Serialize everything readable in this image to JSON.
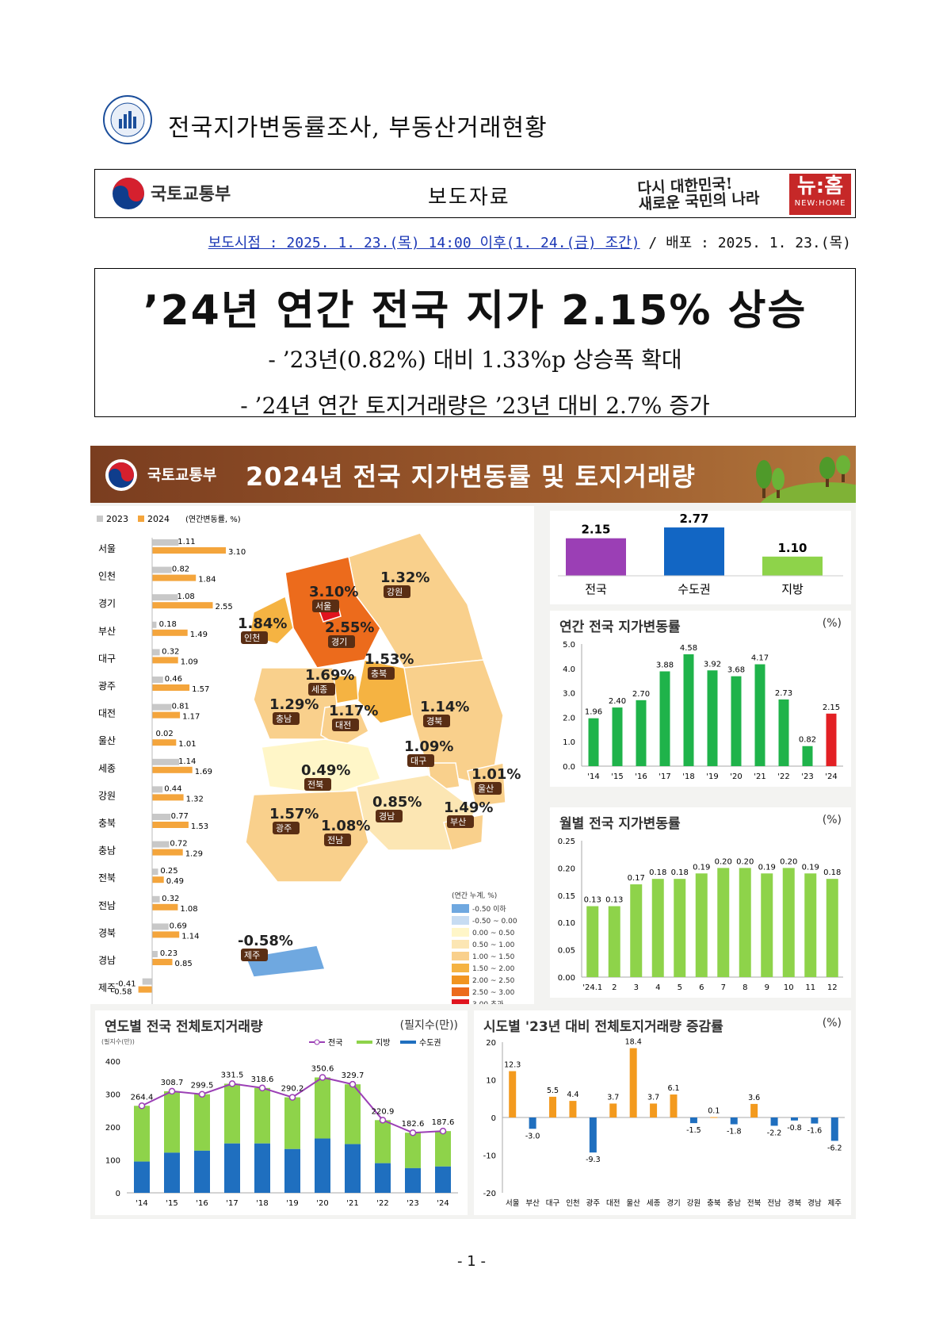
{
  "header": {
    "doc_title": "전국지가변동률조사, 부동산거래현황",
    "ministry": "국토교통부",
    "press_label": "보도자료",
    "slogan": [
      "다시 대한민국!",
      "새로운 국민의 나라"
    ],
    "newhome_big": "뉴:홈",
    "newhome_small": "NEW:HOME",
    "release_prefix": "보도시점 : 2025. 1. 23.(목) 14:00 이후(1. 24.(금) 조간)",
    "release_suffix": " / 배포 : 2025. 1. 23.(목)"
  },
  "headline": {
    "title": "’24년 연간 전국 지가 2.15% 상승",
    "sub1": "- ’23년(0.82%) 대비 1.33%p 상승폭 확대",
    "sub2": "- ’24년 연간 토지거래량은 ’23년 대비 2.7% 증가"
  },
  "infographic": {
    "org": "국토교통부",
    "title": "2024년 전국 지가변동률 및 토지거래량"
  },
  "colors": {
    "y2023": "#c8c8c8",
    "y2024": "#f4a53c",
    "green": "#1fb34a",
    "red": "#e32024",
    "purple": "#9b3fb5",
    "blue": "#1266c4",
    "lightgreen": "#8ed34a",
    "orange": "#f39a1e",
    "steelblue": "#1f6fbf"
  },
  "chart_data": [
    {
      "type": "bar",
      "title": "",
      "legend": [
        "2023",
        "2024"
      ],
      "legend_note": "(연간변동률, %)",
      "categories": [
        "서울",
        "인천",
        "경기",
        "부산",
        "대구",
        "광주",
        "대전",
        "울산",
        "세종",
        "강원",
        "충북",
        "충남",
        "전북",
        "전남",
        "경북",
        "경남",
        "제주"
      ],
      "series": [
        {
          "name": "2023",
          "values": [
            1.11,
            0.82,
            1.08,
            0.18,
            0.32,
            0.46,
            0.81,
            0.02,
            1.14,
            0.44,
            0.77,
            0.72,
            0.25,
            0.32,
            0.69,
            0.23,
            -0.41
          ]
        },
        {
          "name": "2024",
          "values": [
            3.1,
            1.84,
            2.55,
            1.49,
            1.09,
            1.57,
            1.17,
            1.01,
            1.69,
            1.32,
            1.53,
            1.29,
            0.49,
            1.08,
            1.14,
            0.85,
            -0.58
          ]
        }
      ]
    },
    {
      "type": "map",
      "regions": [
        {
          "name": "서울",
          "value": "3.10"
        },
        {
          "name": "인천",
          "value": "1.84"
        },
        {
          "name": "경기",
          "value": "2.55"
        },
        {
          "name": "강원",
          "value": "1.32"
        },
        {
          "name": "충북",
          "value": "1.53"
        },
        {
          "name": "세종",
          "value": "1.69"
        },
        {
          "name": "충남",
          "value": "1.29"
        },
        {
          "name": "대전",
          "value": "1.17"
        },
        {
          "name": "경북",
          "value": "1.14"
        },
        {
          "name": "대구",
          "value": "1.09"
        },
        {
          "name": "전북",
          "value": "0.49"
        },
        {
          "name": "울산",
          "value": "1.01"
        },
        {
          "name": "경남",
          "value": "0.85"
        },
        {
          "name": "부산",
          "value": "1.49"
        },
        {
          "name": "광주",
          "value": "1.57"
        },
        {
          "name": "전남",
          "value": "1.08"
        },
        {
          "name": "제주",
          "value": "-0.58"
        }
      ],
      "legend_title": "(연간 누계, %)",
      "legend": [
        {
          "label": "-0.50 이하",
          "color": "#6fa8e0"
        },
        {
          "label": "-0.50 ~ 0.00",
          "color": "#c7dcf2"
        },
        {
          "label": "0.00 ~ 0.50",
          "color": "#fff6c8"
        },
        {
          "label": "0.50 ~ 1.00",
          "color": "#fce6b3"
        },
        {
          "label": "1.00 ~ 1.50",
          "color": "#f9d08c"
        },
        {
          "label": "1.50 ~ 2.00",
          "color": "#f5b342"
        },
        {
          "label": "2.00 ~ 2.50",
          "color": "#f19420"
        },
        {
          "label": "2.50 ~ 3.00",
          "color": "#ec6b1c"
        },
        {
          "label": "3.00 초과",
          "color": "#e0141e"
        }
      ]
    },
    {
      "type": "bar",
      "title": "",
      "categories": [
        "전국",
        "수도권",
        "지방"
      ],
      "values": [
        2.15,
        2.77,
        1.1
      ],
      "labels": [
        "2.15",
        "2.77",
        "1.10"
      ]
    },
    {
      "type": "bar",
      "title": "연간 전국 지가변동률",
      "unit": "(%)",
      "categories": [
        "'14",
        "'15",
        "'16",
        "'17",
        "'18",
        "'19",
        "'20",
        "'21",
        "'22",
        "'23",
        "'24"
      ],
      "values": [
        1.96,
        2.4,
        2.7,
        3.88,
        4.58,
        3.92,
        3.68,
        4.17,
        2.73,
        0.82,
        2.15
      ],
      "labels": [
        "1.96",
        "2.40",
        "2.70",
        "3.88",
        "4.58",
        "3.92",
        "3.68",
        "4.17",
        "2.73",
        "0.82",
        "2.15"
      ],
      "yticks": [
        "0.0",
        "1.0",
        "2.0",
        "3.0",
        "4.0",
        "5.0"
      ],
      "ylim": [
        0,
        5
      ]
    },
    {
      "type": "bar",
      "title": "월별 전국 지가변동률",
      "unit": "(%)",
      "categories": [
        "'24.1",
        "2",
        "3",
        "4",
        "5",
        "6",
        "7",
        "8",
        "9",
        "10",
        "11",
        "12"
      ],
      "values": [
        0.13,
        0.13,
        0.17,
        0.18,
        0.18,
        0.19,
        0.2,
        0.2,
        0.19,
        0.2,
        0.19,
        0.18
      ],
      "labels": [
        "0.13",
        "0.13",
        "0.17",
        "0.18",
        "0.18",
        "0.19",
        "0.20",
        "0.20",
        "0.19",
        "0.20",
        "0.19",
        "0.18"
      ],
      "yticks": [
        "0.00",
        "0.05",
        "0.10",
        "0.15",
        "0.20",
        "0.25"
      ],
      "ylim": [
        0,
        0.25
      ]
    },
    {
      "type": "bar",
      "title": "연도별 전국 전체토지거래량",
      "unit": "(필지수(만))",
      "yunit": "(필지수(만))",
      "legend": [
        "전국",
        "지방",
        "수도권"
      ],
      "categories": [
        "'14",
        "'15",
        "'16",
        "'17",
        "'18",
        "'19",
        "'20",
        "'21",
        "'22",
        "'23",
        "'24"
      ],
      "series": [
        {
          "name": "전국",
          "values": [
            264.4,
            308.7,
            299.5,
            331.5,
            318.6,
            290.2,
            350.6,
            329.7,
            220.9,
            182.6,
            187.6
          ]
        },
        {
          "name": "수도권",
          "values": [
            95,
            122,
            128,
            150,
            150,
            133,
            165,
            148,
            90,
            75,
            80
          ]
        }
      ],
      "labels": [
        "264.4",
        "308.7",
        "299.5",
        "331.5",
        "318.6",
        "290.2",
        "350.6",
        "329.7",
        "220.9",
        "182.6",
        "187.6"
      ],
      "yticks": [
        "0",
        "100",
        "200",
        "300",
        "400"
      ],
      "ylim": [
        0,
        400
      ]
    },
    {
      "type": "bar",
      "title": "시도별 '23년 대비 전체토지거래량 증감률",
      "unit": "(%)",
      "categories": [
        "서울",
        "부산",
        "대구",
        "인천",
        "광주",
        "대전",
        "울산",
        "세종",
        "경기",
        "강원",
        "충북",
        "충남",
        "전북",
        "전남",
        "경북",
        "경남",
        "제주"
      ],
      "values": [
        12.3,
        -3.0,
        5.5,
        4.4,
        -9.3,
        3.7,
        18.4,
        3.7,
        6.1,
        -1.5,
        0.1,
        -1.8,
        3.6,
        -2.2,
        -0.8,
        -1.6,
        -6.2
      ],
      "labels": [
        "12.3",
        "-3.0",
        "5.5",
        "4.4",
        "-9.3",
        "3.7",
        "18.4",
        "3.7",
        "6.1",
        "-1.5",
        "0.1",
        "-1.8",
        "3.6",
        "-2.2",
        "-0.8",
        "-1.6",
        "-6.2"
      ],
      "yticks": [
        "-20",
        "-10",
        "0",
        "10",
        "20"
      ],
      "ylim": [
        -20,
        20
      ]
    }
  ],
  "page_number": "- 1 -"
}
